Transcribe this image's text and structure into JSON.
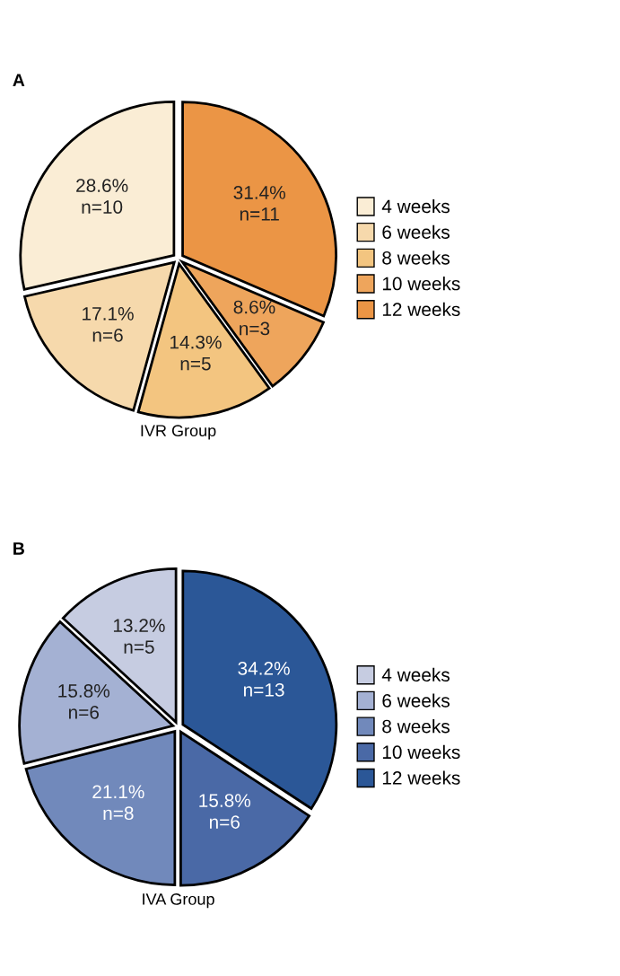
{
  "chart_data": [
    {
      "type": "pie",
      "title": "IVR Group",
      "annotations": [
        "A"
      ],
      "categories": [
        "4 weeks",
        "6 weeks",
        "8 weeks",
        "10 weeks",
        "12 weeks"
      ],
      "values": [
        10,
        6,
        5,
        3,
        11
      ],
      "value_labels": [
        "28.6%\nn=10",
        "17.1%\nn=6",
        "14.3%\nn=5",
        "8.6%\nn=3",
        "31.4%\nn=11"
      ],
      "colors": [
        "#faedd5",
        "#f6d9ac",
        "#f3c580",
        "#eea55c",
        "#eb9545"
      ],
      "legend": "right"
    },
    {
      "type": "pie",
      "title": "IVA Group",
      "annotations": [
        "B"
      ],
      "categories": [
        "4 weeks",
        "6 weeks",
        "8 weeks",
        "10 weeks",
        "12 weeks"
      ],
      "values": [
        5,
        6,
        8,
        6,
        13
      ],
      "value_labels": [
        "13.2%\nn=5",
        "15.8%\nn=6",
        "21.1%\nn=8",
        "15.8%\nn=6",
        "34.2%\nn=13"
      ],
      "colors": [
        "#c6cce1",
        "#a4b1d3",
        "#7189bb",
        "#4a69a6",
        "#2b5797"
      ],
      "legend": "right"
    }
  ]
}
